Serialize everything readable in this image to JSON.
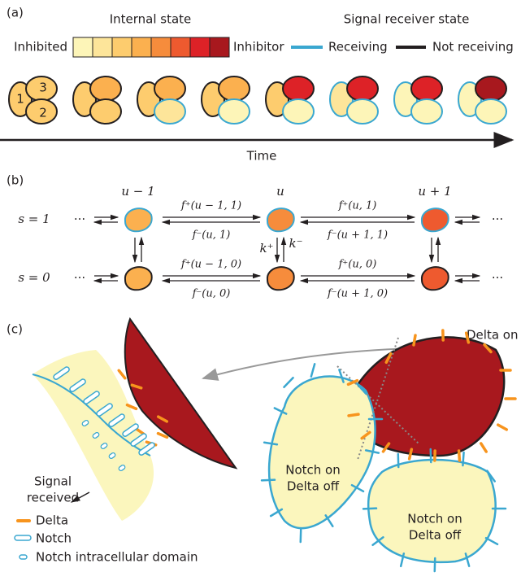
{
  "panel_a": {
    "label": "(a)",
    "internal_state": "Internal state",
    "inhibited": "Inhibited",
    "inhibitor": "Inhibitor",
    "receiver_state": "Signal receiver state",
    "receiving": "Receiving",
    "not_receiving": "Not receiving",
    "cell_labels": [
      "1",
      "2",
      "3"
    ],
    "time": "Time"
  },
  "panel_b": {
    "label": "(b)",
    "columns": [
      "u − 1",
      "u",
      "u + 1"
    ],
    "rows": [
      "s = 1",
      "s = 0"
    ],
    "ellipsis": "···",
    "rates_top": [
      "f⁺(u − 1, 1)",
      "f⁻(u, 1)",
      "f⁺(u, 1)",
      "f⁻(u + 1, 1)"
    ],
    "rates_bottom": [
      "f⁺(u − 1, 0)",
      "f⁻(u, 0)",
      "f⁺(u, 0)",
      "f⁻(u + 1, 0)"
    ],
    "k_plus": "k⁺",
    "k_minus": "k⁻"
  },
  "panel_c": {
    "label": "(c)",
    "delta_on": "Delta on",
    "notch_on": "Notch on",
    "delta_off": "Delta off",
    "signal_received": [
      "Signal",
      "received"
    ],
    "legend": [
      "Delta",
      "Notch",
      "Notch intracellular domain"
    ]
  }
}
